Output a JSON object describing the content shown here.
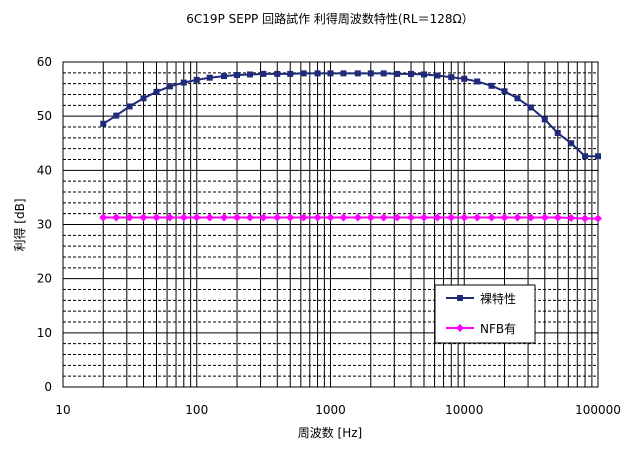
{
  "chart_data": {
    "type": "line",
    "title": "6C19P  SEPP  回路試作  利得周波数特性(RL＝128Ω）",
    "xlabel": "周波数 [Hz]",
    "ylabel": "利得 [dB]",
    "x_scale": "log",
    "xlim": [
      10,
      100000
    ],
    "ylim": [
      0,
      60
    ],
    "x_ticks": [
      "10",
      "100",
      "1000",
      "10000",
      "100000"
    ],
    "y_ticks": [
      "0",
      "10",
      "20",
      "30",
      "40",
      "50",
      "60"
    ],
    "grid": true,
    "legend_position": "lower-right",
    "x": [
      20,
      25,
      31.5,
      40,
      50,
      63,
      80,
      100,
      125,
      160,
      200,
      250,
      315,
      400,
      500,
      630,
      800,
      1000,
      1250,
      1600,
      2000,
      2500,
      3150,
      4000,
      5000,
      6300,
      8000,
      10000,
      12500,
      16000,
      20000,
      25000,
      31500,
      40000,
      50000,
      63000,
      80000,
      100000
    ],
    "series": [
      {
        "name": "裸特性",
        "color": "#1f2a78",
        "marker": "square",
        "values": [
          48.6,
          50.1,
          51.8,
          53.3,
          54.5,
          55.5,
          56.2,
          56.7,
          57.1,
          57.4,
          57.6,
          57.7,
          57.8,
          57.8,
          57.8,
          57.9,
          57.9,
          57.9,
          57.9,
          57.9,
          57.9,
          57.9,
          57.8,
          57.8,
          57.7,
          57.5,
          57.2,
          56.9,
          56.4,
          55.6,
          54.6,
          53.3,
          51.6,
          49.4,
          46.9,
          45.0,
          42.6,
          42.6
        ]
      },
      {
        "name": "NFB有",
        "color": "#ff00ff",
        "marker": "diamond",
        "values": [
          31.3,
          31.3,
          31.3,
          31.3,
          31.3,
          31.3,
          31.3,
          31.3,
          31.3,
          31.3,
          31.3,
          31.3,
          31.3,
          31.3,
          31.3,
          31.3,
          31.3,
          31.3,
          31.3,
          31.3,
          31.3,
          31.3,
          31.3,
          31.3,
          31.3,
          31.3,
          31.3,
          31.3,
          31.3,
          31.3,
          31.3,
          31.3,
          31.3,
          31.3,
          31.3,
          31.2,
          31.1,
          31.1
        ]
      }
    ]
  }
}
